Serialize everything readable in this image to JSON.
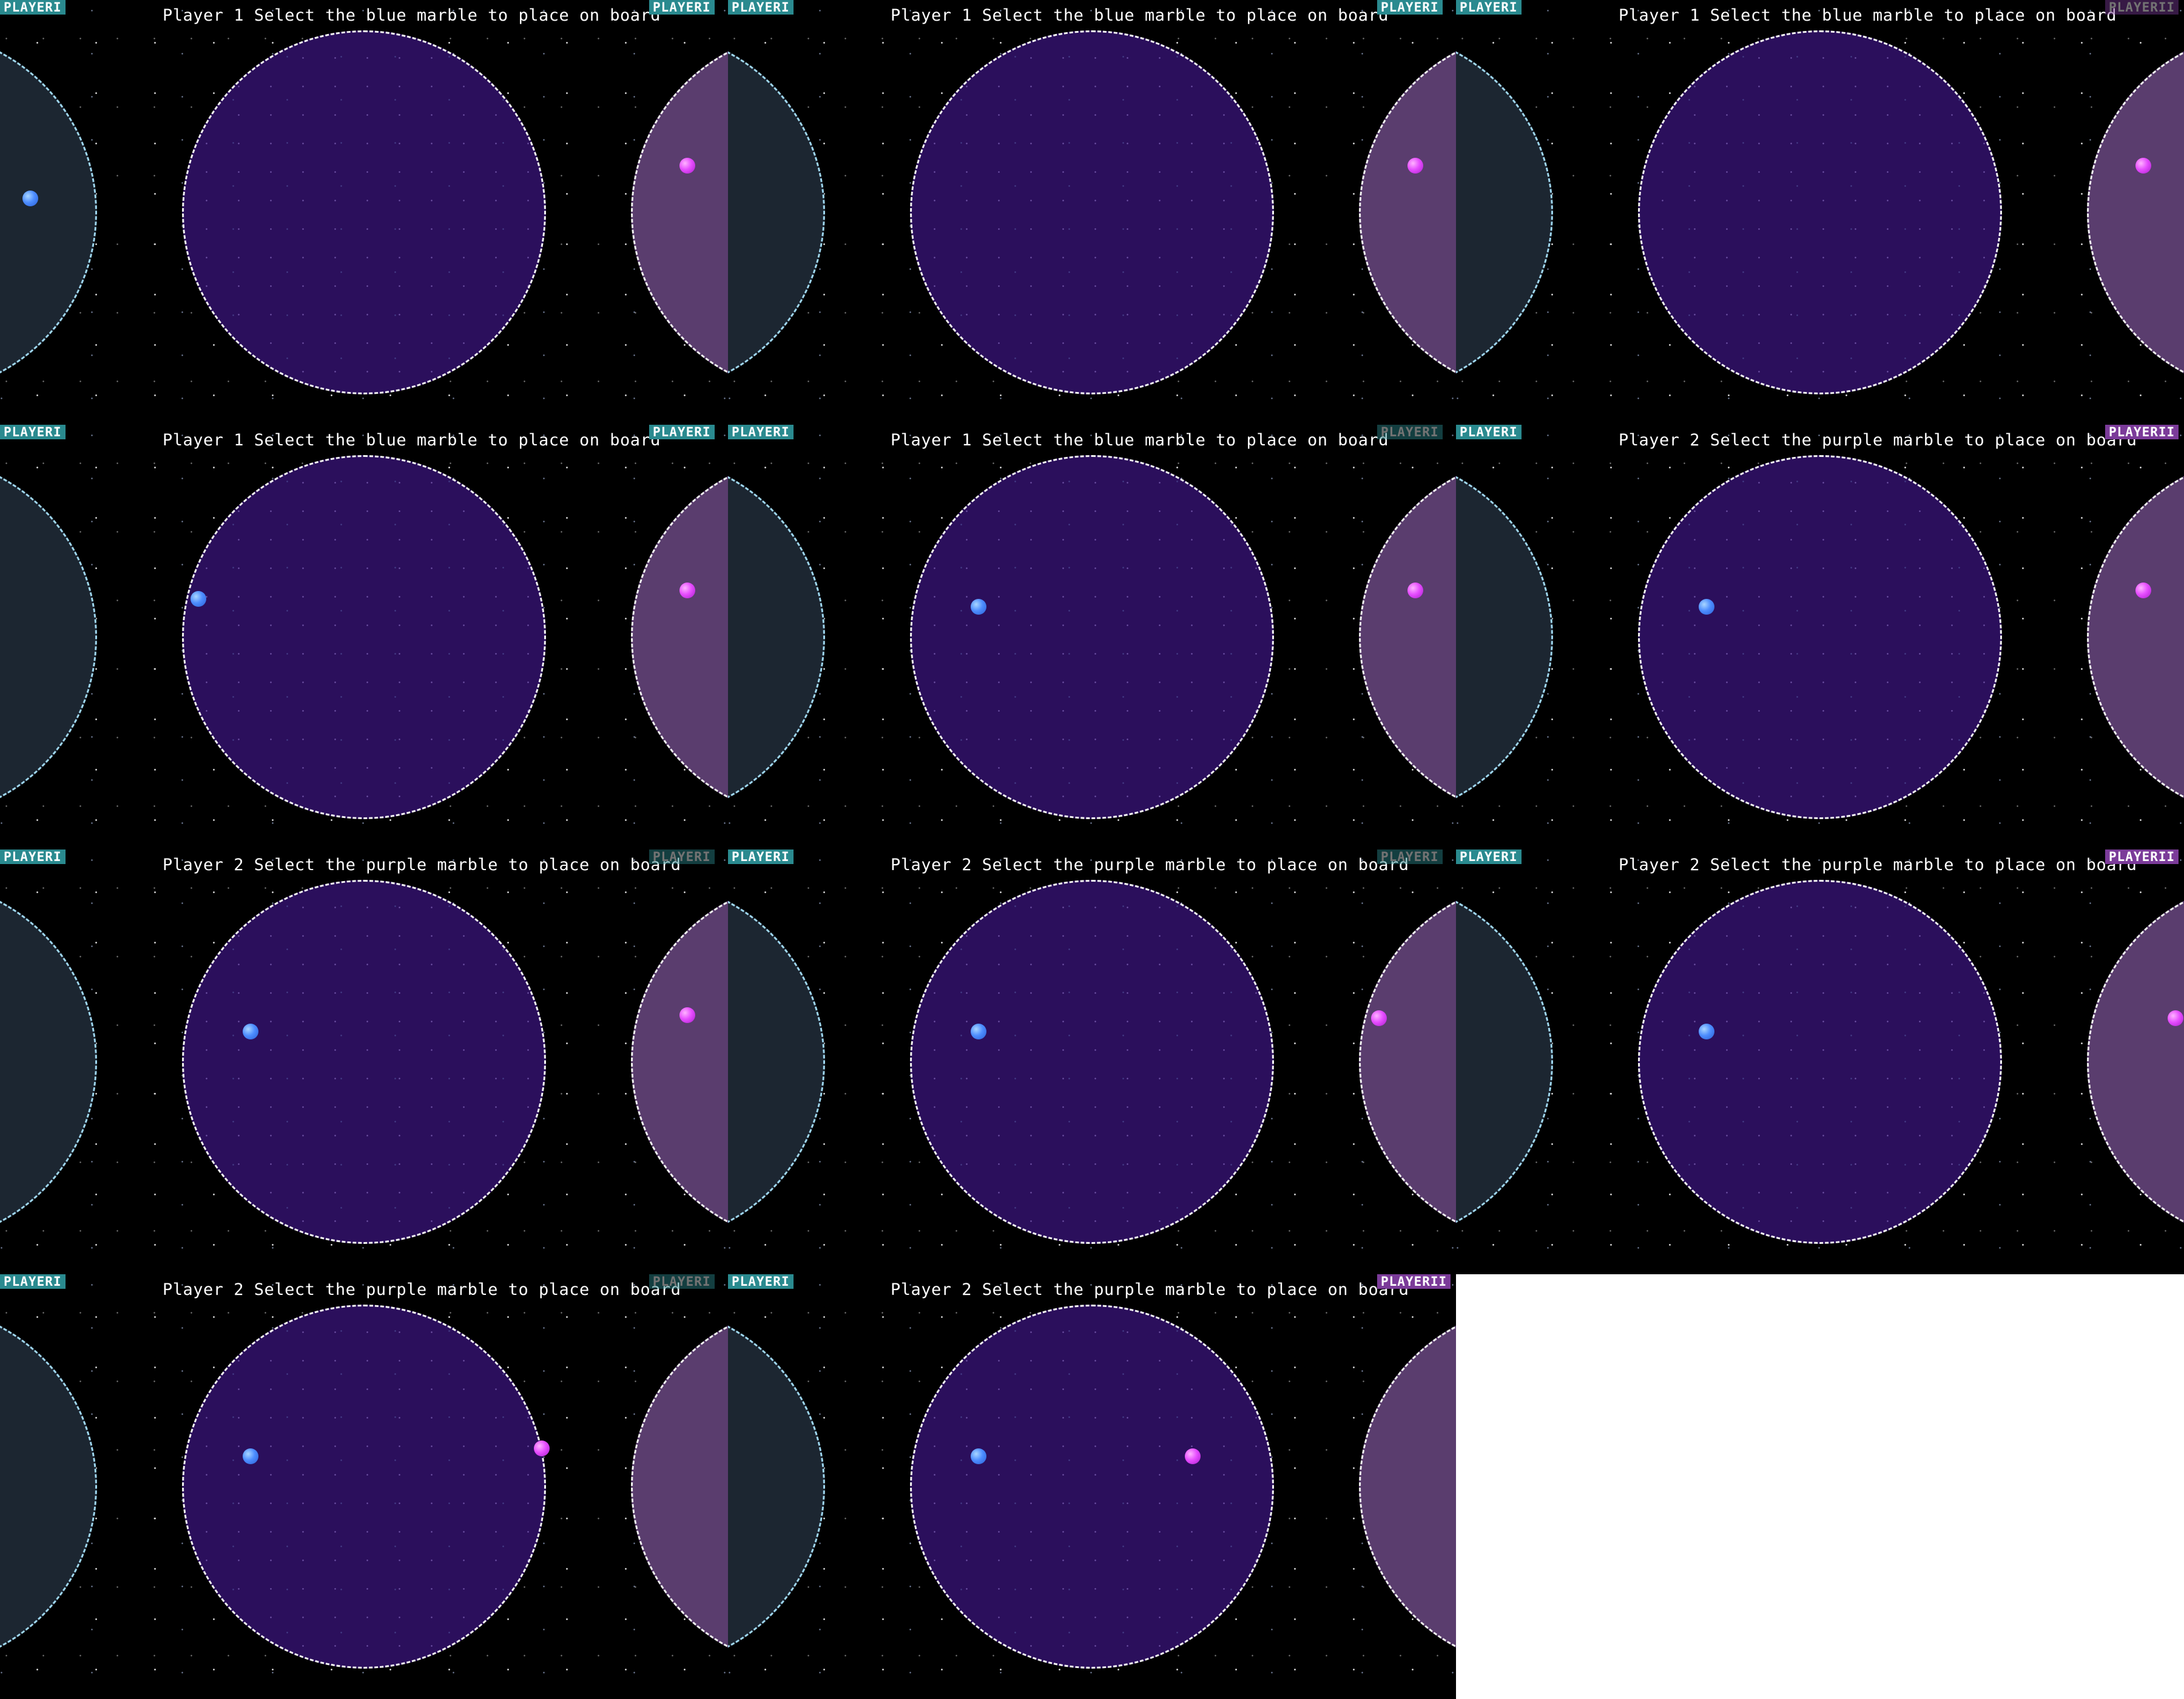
{
  "sheet": {
    "player_badge_1": "PLAYERI",
    "player_badge_2": "PLAYERII",
    "colors": {
      "board": "#2b0f5c",
      "player1": "#2a8a8f",
      "player2": "#7b3b99",
      "blue_marble": "#4d8dff",
      "purple_marble": "#e64dff"
    },
    "frames": [
      {
        "prompt": "Player 1 Select the blue marble to place on board",
        "right_badge": "PLAYERI",
        "right_badge_player": 1,
        "right_badge_dim": false
      },
      {
        "prompt": "Player 1 Select the blue marble to place on board",
        "right_badge": "PLAYERI",
        "right_badge_player": 1,
        "right_badge_dim": false
      },
      {
        "prompt": "Player 1 Select the blue marble to place on board",
        "right_badge": "PLAYERII",
        "right_badge_player": 2,
        "right_badge_dim": true
      },
      {
        "prompt": "Player 1 Select the blue marble to place on board",
        "right_badge": "PLAYERI",
        "right_badge_player": 1,
        "right_badge_dim": false
      },
      {
        "prompt": "Player 1 Select the blue marble to place on board",
        "right_badge": "PLAYERI",
        "right_badge_player": 1,
        "right_badge_dim": true
      },
      {
        "prompt": "Player 2 Select the purple marble to place on board",
        "right_badge": "PLAYERII",
        "right_badge_player": 2,
        "right_badge_dim": false
      },
      {
        "prompt": "Player 2 Select the purple marble to place on board",
        "right_badge": "PLAYERI",
        "right_badge_player": 1,
        "right_badge_dim": true
      },
      {
        "prompt": "Player 2 Select the purple marble to place on board",
        "right_badge": "PLAYERI",
        "right_badge_player": 1,
        "right_badge_dim": true
      },
      {
        "prompt": "Player 2 Select the purple marble to place on board",
        "right_badge": "PLAYERII",
        "right_badge_player": 2,
        "right_badge_dim": false
      },
      {
        "prompt": "Player 2 Select the purple marble to place on board",
        "right_badge": "PLAYERI",
        "right_badge_player": 1,
        "right_badge_dim": true
      },
      {
        "prompt": "Player 2 Select the purple marble to place on board",
        "right_badge": "PLAYERII",
        "right_badge_player": 2,
        "right_badge_dim": false
      }
    ]
  }
}
